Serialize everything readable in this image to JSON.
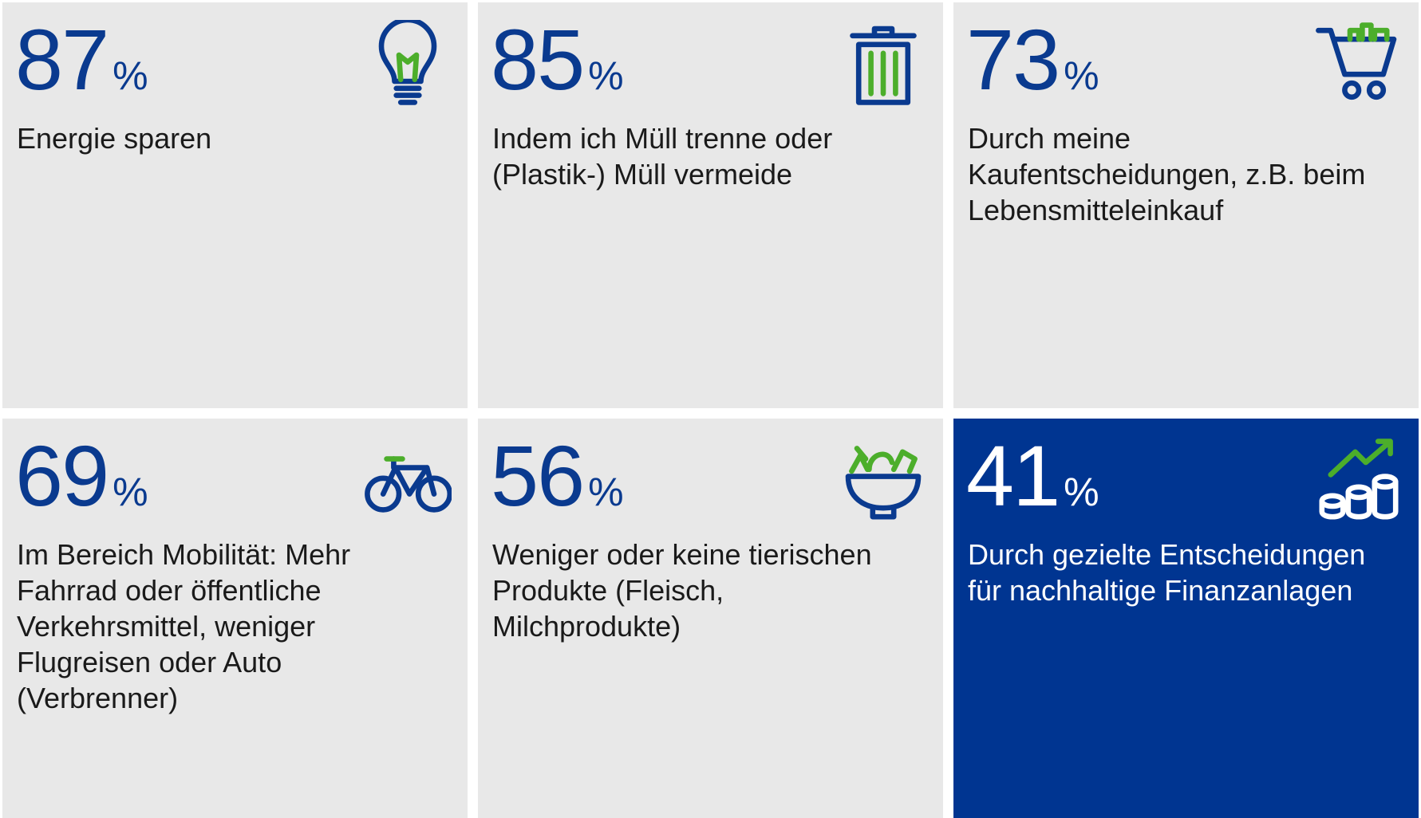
{
  "unit": "%",
  "tiles": [
    {
      "value": 87,
      "label_lines": [
        "Energie sparen"
      ]
    },
    {
      "value": 85,
      "label_lines": [
        "Indem ich Müll trenne oder",
        "(Plastik-) Müll vermeide"
      ]
    },
    {
      "value": 73,
      "label_lines": [
        "Durch meine",
        "Kaufentscheidungen, z.B. beim",
        "Lebensmitteleinkauf"
      ]
    },
    {
      "value": 69,
      "label_lines": [
        "Im Bereich Mobilität: Mehr",
        "Fahrrad oder öffentliche",
        "Verkehrsmittel, weniger",
        "Flugreisen oder Auto",
        "(Verbrenner)"
      ]
    },
    {
      "value": 56,
      "label_lines": [
        "Weniger oder keine tierischen",
        "Produkte (Fleisch,",
        "Milchprodukte)"
      ]
    },
    {
      "value": 41,
      "label_lines": [
        "Durch gezielte Entscheidungen",
        "für nachhaltige Finanzanlagen"
      ]
    }
  ]
}
